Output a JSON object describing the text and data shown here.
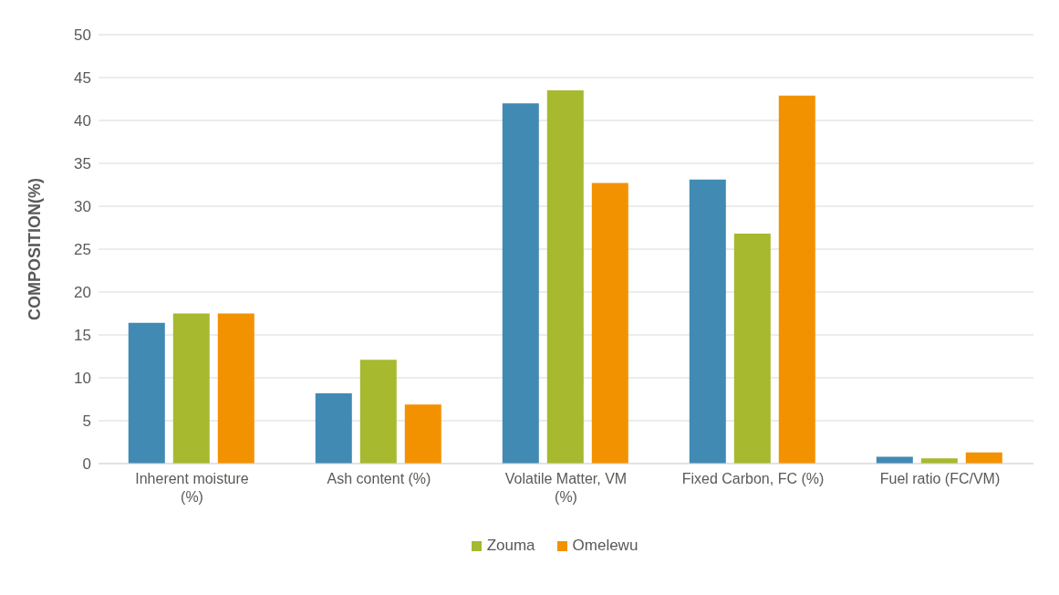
{
  "chart_data": {
    "type": "bar",
    "ylabel": "COMPOSITION(%)",
    "categories": [
      "Inherent moisture (%)",
      "Ash content (%)",
      "Volatile Matter, VM (%)",
      "Fixed Carbon, FC (%)",
      "Fuel ratio (FC/VM)"
    ],
    "series": [
      {
        "color": "#418ab3",
        "values": [
          16.4,
          8.2,
          42,
          33.1,
          0.8
        ]
      },
      {
        "name": "Zouma",
        "color": "#a6b92f",
        "values": [
          17.5,
          12.1,
          43.5,
          26.8,
          0.6
        ]
      },
      {
        "name": "Omelewu",
        "color": "#f39200",
        "values": [
          17.5,
          6.9,
          32.7,
          42.9,
          1.3
        ]
      }
    ],
    "ylim": [
      0,
      50
    ],
    "yticks": [
      0,
      5,
      10,
      15,
      20,
      25,
      30,
      35,
      40,
      45,
      50
    ],
    "grid": "y",
    "legend": "bottom"
  }
}
